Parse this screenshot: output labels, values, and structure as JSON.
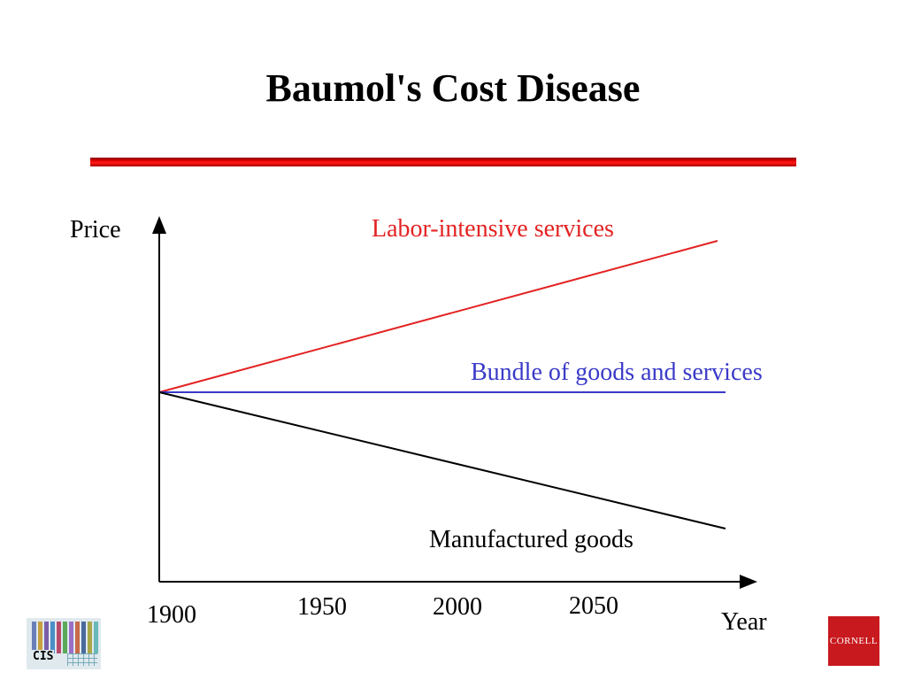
{
  "slide": {
    "title": "Baumol's Cost Disease"
  },
  "diagram": {
    "axes": {
      "y_label": "Price",
      "x_label": "Year"
    },
    "x_ticks": [
      "1900",
      "1950",
      "2000",
      "2050"
    ],
    "series": [
      {
        "name": "Labor-intensive services",
        "color": "#e32323",
        "trend": "rising"
      },
      {
        "name": "Bundle of goods and services",
        "color": "#3a3ac8",
        "trend": "flat"
      },
      {
        "name": "Manufactured goods",
        "color": "#000000",
        "trend": "falling"
      }
    ]
  },
  "logos": {
    "left": "CIS",
    "right": "CORNELL"
  }
}
